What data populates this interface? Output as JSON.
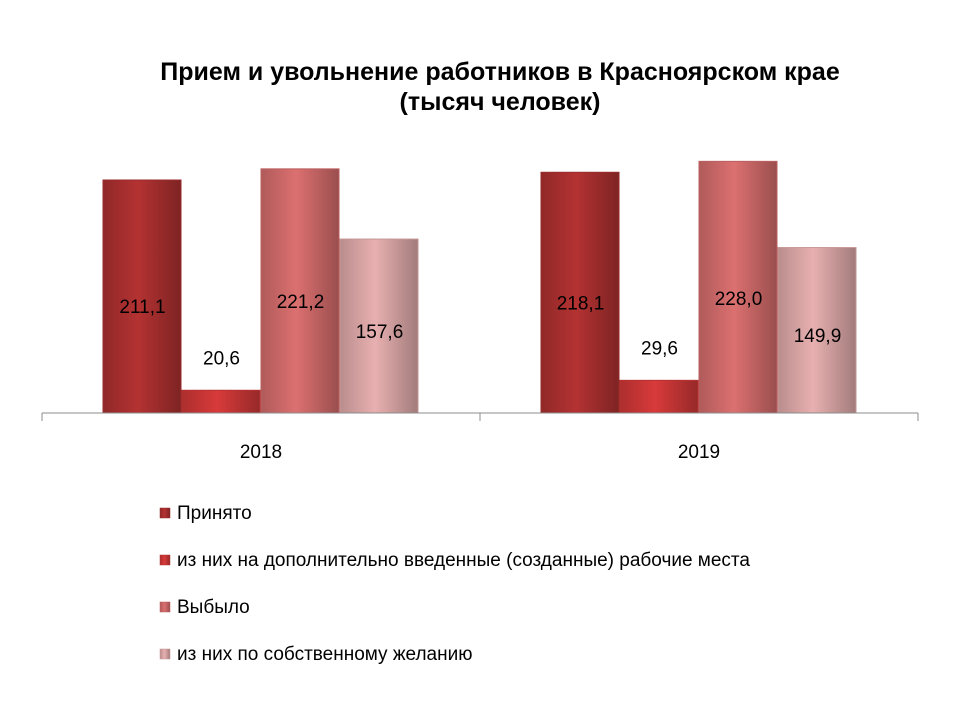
{
  "chart_data": {
    "type": "bar",
    "title_line1": "Прием и увольнение работников в Красноярском крае",
    "title_line2": "(тысяч человек)",
    "categories": [
      "2018",
      "2019"
    ],
    "series": [
      {
        "name": "Принято",
        "values": [
          211.1,
          218.1
        ],
        "labels": [
          "211,1",
          "218,1"
        ],
        "color": "#b43232"
      },
      {
        "name": "из них на дополнительно введенные (созданные) рабочие места",
        "values": [
          20.6,
          29.6
        ],
        "labels": [
          "20,6",
          "29,6"
        ],
        "color": "#d83a3a"
      },
      {
        "name": "Выбыло",
        "values": [
          221.2,
          228.0
        ],
        "labels": [
          "221,2",
          "228,0"
        ],
        "color": "#dc7070"
      },
      {
        "name": "из них по собственному желанию",
        "values": [
          157.6,
          149.9
        ],
        "labels": [
          "157,6",
          "149,9"
        ],
        "color": "#e8b0b0"
      }
    ],
    "ylim": [
      0,
      250
    ],
    "grid": false,
    "legend_position": "bottom"
  }
}
